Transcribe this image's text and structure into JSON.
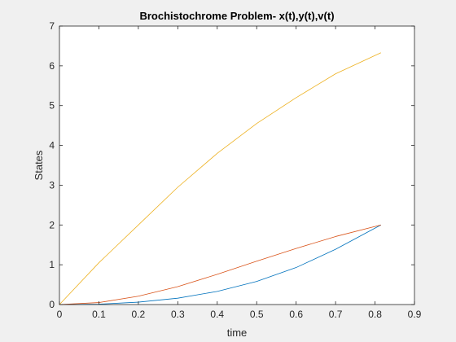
{
  "chart_data": {
    "type": "line",
    "title": "Brochistochrome Problem- x(t),y(t),v(t)",
    "xlabel": "time",
    "ylabel": "States",
    "xlim": [
      0,
      0.9
    ],
    "ylim": [
      0,
      7
    ],
    "x_ticks": [
      "0",
      "0.1",
      "0.2",
      "0.3",
      "0.4",
      "0.5",
      "0.6",
      "0.7",
      "0.8",
      "0.9"
    ],
    "y_ticks": [
      "0",
      "1",
      "2",
      "3",
      "4",
      "5",
      "6",
      "7"
    ],
    "grid": false,
    "box": true,
    "colors": {
      "background": "#f0f0f0",
      "axes_background": "#ffffff",
      "axes": "#262626"
    },
    "series": [
      {
        "color": "#0072bd",
        "x": [
          0,
          0.1,
          0.2,
          0.3,
          0.4,
          0.5,
          0.6,
          0.7,
          0.815
        ],
        "y": [
          0,
          0.01,
          0.06,
          0.16,
          0.33,
          0.58,
          0.93,
          1.39,
          2.0
        ]
      },
      {
        "color": "#d95319",
        "x": [
          0,
          0.1,
          0.2,
          0.3,
          0.4,
          0.5,
          0.6,
          0.7,
          0.815
        ],
        "y": [
          0,
          0.05,
          0.21,
          0.45,
          0.76,
          1.09,
          1.41,
          1.71,
          2.0
        ]
      },
      {
        "color": "#edb120",
        "x": [
          0,
          0.1,
          0.2,
          0.3,
          0.4,
          0.5,
          0.6,
          0.7,
          0.815
        ],
        "y": [
          0,
          1.05,
          2.0,
          2.95,
          3.8,
          4.55,
          5.2,
          5.8,
          6.33
        ]
      }
    ]
  }
}
